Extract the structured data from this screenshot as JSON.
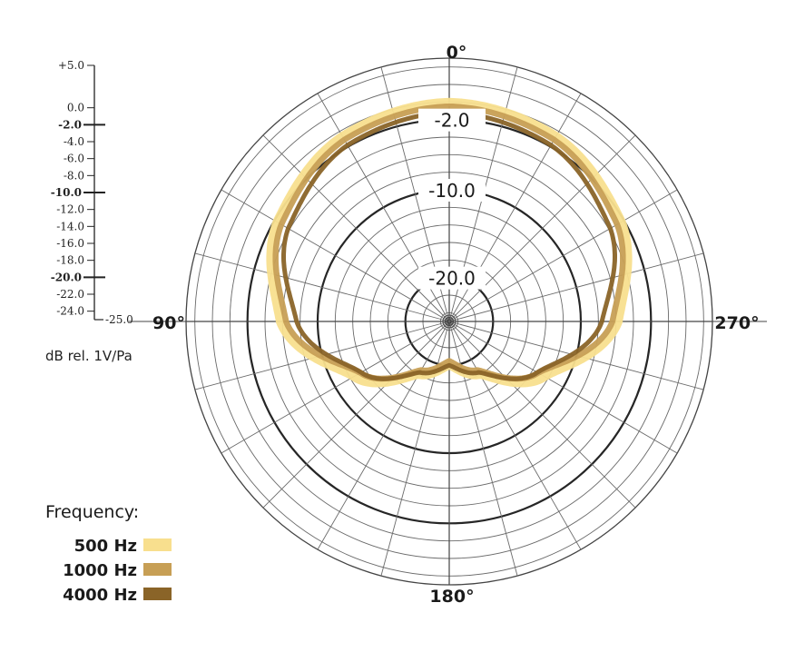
{
  "chart_data": {
    "type": "polar",
    "angle_labels": [
      "0°",
      "90°",
      "180°",
      "270°"
    ],
    "angular_grid_step_deg": 15,
    "radial_range_db": [
      -25,
      5
    ],
    "radial_grid_step_db": 2,
    "bold_rings_db": [
      -2,
      -10,
      -20
    ],
    "ring_labels": [
      "-2.0",
      "-10.0",
      "-20.0"
    ],
    "scale": {
      "ticks": [
        "+5.0",
        "0.0",
        "-2.0",
        "-4.0",
        "-6.0",
        "-8.0",
        "-10.0",
        "-12.0",
        "-14.0",
        "-16.0",
        "-18.0",
        "-20.0",
        "-22.0",
        "-24.0",
        "-25.0"
      ],
      "tick_values": [
        5,
        0,
        -2,
        -4,
        -6,
        -8,
        -10,
        -12,
        -14,
        -16,
        -18,
        -20,
        -22,
        -24,
        -25
      ],
      "major_ticks": [
        "-2.0",
        "-10.0",
        "-20.0"
      ],
      "unit": "dB rel. 1V/Pa"
    },
    "series": [
      {
        "name": "500 Hz",
        "color": "#f8df8e",
        "pattern": "cardioid",
        "angles_deg": [
          0,
          30,
          60,
          90,
          120,
          150,
          180
        ],
        "values_db": [
          0.0,
          -0.6,
          -2.3,
          -5.7,
          -12.4,
          -18.0,
          -20.0
        ]
      },
      {
        "name": "1000 Hz",
        "color": "#c79f55",
        "pattern": "cardioid",
        "angles_deg": [
          0,
          30,
          60,
          90,
          120,
          150,
          180
        ],
        "values_db": [
          -0.5,
          -1.1,
          -2.9,
          -6.4,
          -13.3,
          -18.6,
          -20.5
        ]
      },
      {
        "name": "4000 Hz",
        "color": "#8a6428",
        "pattern": "cardioid",
        "angles_deg": [
          0,
          30,
          60,
          90,
          120,
          150,
          180
        ],
        "values_db": [
          -1.2,
          -1.8,
          -3.8,
          -7.6,
          -13.4,
          -18.3,
          -20.0
        ]
      }
    ],
    "legend_title": "Frequency:",
    "legend_position": "bottom-left"
  }
}
